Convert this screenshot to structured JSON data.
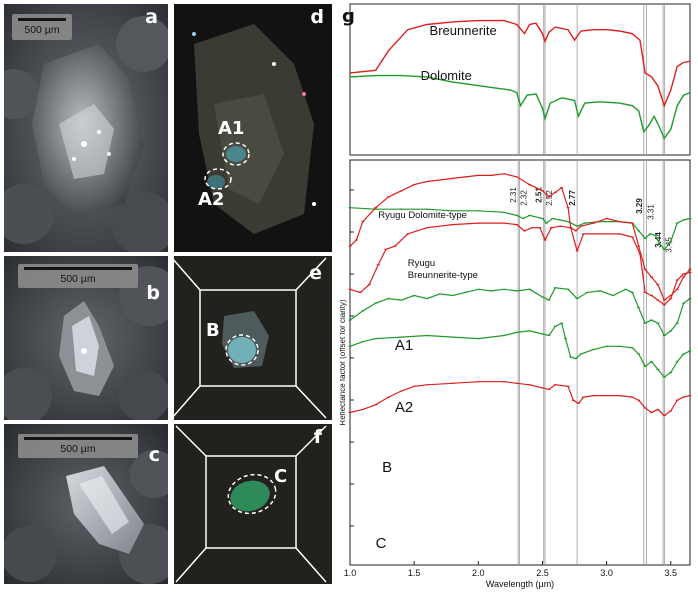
{
  "panels": {
    "a": {
      "label": "a",
      "scale": "500 µm"
    },
    "b": {
      "label": "b",
      "scale": "500 µm"
    },
    "c": {
      "label": "c",
      "scale": "500 µm"
    },
    "d": {
      "label": "d",
      "spots": [
        "A1",
        "A2"
      ]
    },
    "e": {
      "label": "e",
      "spots": [
        "B"
      ]
    },
    "f": {
      "label": "f",
      "spots": [
        "C"
      ]
    },
    "g": {
      "label": "g"
    }
  },
  "chart_data": {
    "type": "line",
    "xlabel": "Wavelength (µm)",
    "ylabel": "Reflectance factor (offset for clarity)",
    "xlim": [
      1.0,
      3.65
    ],
    "xticks": [
      "1.0",
      "1.5",
      "2.0",
      "2.5",
      "3.0",
      "3.5"
    ],
    "reference_lines": [
      {
        "x": 2.31,
        "label": "2.31",
        "bold": false
      },
      {
        "x": 2.32,
        "label": "2.32",
        "bold": false
      },
      {
        "x": 2.51,
        "label": "2.51",
        "bold": true
      },
      {
        "x": 2.52,
        "label": "2.52",
        "bold": false
      },
      {
        "x": 2.77,
        "label": "2.77",
        "bold": true
      },
      {
        "x": 3.29,
        "label": "3.29",
        "bold": true
      },
      {
        "x": 3.31,
        "label": "3.31",
        "bold": false
      },
      {
        "x": 3.44,
        "label": "3.44",
        "bold": true
      },
      {
        "x": 3.45,
        "label": "3.45",
        "bold": false
      }
    ],
    "colors": {
      "red": "#dd1f1f",
      "green": "#1f9a2a"
    },
    "upper": [
      {
        "name": "Breunnerite",
        "color": "red",
        "x": [
          1.0,
          1.2,
          1.3,
          1.45,
          1.6,
          1.8,
          2.0,
          2.2,
          2.3,
          2.36,
          2.4,
          2.45,
          2.5,
          2.52,
          2.55,
          2.6,
          2.7,
          2.75,
          2.8,
          2.9,
          3.0,
          3.1,
          3.2,
          3.26,
          3.3,
          3.35,
          3.4,
          3.45,
          3.5,
          3.55,
          3.6,
          3.65
        ],
        "y": [
          0.55,
          0.57,
          0.72,
          0.88,
          0.92,
          0.94,
          0.95,
          0.95,
          0.92,
          0.85,
          0.92,
          0.93,
          0.85,
          0.79,
          0.86,
          0.9,
          0.88,
          0.8,
          0.87,
          0.88,
          0.88,
          0.87,
          0.85,
          0.8,
          0.55,
          0.52,
          0.45,
          0.3,
          0.42,
          0.6,
          0.63,
          0.64
        ]
      },
      {
        "name": "Dolomite",
        "color": "green",
        "x": [
          1.0,
          1.2,
          1.4,
          1.6,
          1.8,
          1.95,
          2.1,
          2.25,
          2.3,
          2.33,
          2.38,
          2.45,
          2.5,
          2.52,
          2.56,
          2.65,
          2.75,
          2.78,
          2.83,
          2.95,
          3.1,
          3.2,
          3.25,
          3.29,
          3.33,
          3.37,
          3.41,
          3.45,
          3.5,
          3.55,
          3.6,
          3.65
        ],
        "y": [
          0.52,
          0.53,
          0.53,
          0.52,
          0.48,
          0.46,
          0.44,
          0.42,
          0.4,
          0.3,
          0.38,
          0.39,
          0.28,
          0.2,
          0.32,
          0.36,
          0.34,
          0.22,
          0.32,
          0.33,
          0.32,
          0.3,
          0.26,
          0.1,
          0.15,
          0.22,
          0.14,
          0.05,
          0.12,
          0.3,
          0.38,
          0.4
        ]
      }
    ],
    "lower": [
      {
        "name": "Ryugu Dolomite-type",
        "label": "Ryugu Dolomite-type",
        "color": "green",
        "x": [
          1.0,
          1.2,
          1.4,
          1.6,
          1.8,
          2.0,
          2.2,
          2.3,
          2.35,
          2.4,
          2.5,
          2.53,
          2.58,
          2.7,
          2.77,
          2.83,
          2.95,
          3.1,
          3.2,
          3.25,
          3.3,
          3.34,
          3.38,
          3.41,
          3.45,
          3.5,
          3.55,
          3.6,
          3.65
        ],
        "y": [
          0.95,
          0.94,
          0.94,
          0.94,
          0.93,
          0.93,
          0.92,
          0.9,
          0.88,
          0.9,
          0.88,
          0.85,
          0.88,
          0.86,
          0.83,
          0.85,
          0.86,
          0.86,
          0.85,
          0.8,
          0.75,
          0.78,
          0.77,
          0.72,
          0.68,
          0.73,
          0.85,
          0.87,
          0.88
        ]
      },
      {
        "name": "Ryugu Breunnerite-type",
        "label": "Ryugu Breunnerite-type",
        "color": "red",
        "x": [
          1.0,
          1.08,
          1.15,
          1.22,
          1.28,
          1.35,
          1.45,
          1.6,
          1.8,
          2.0,
          2.2,
          2.3,
          2.36,
          2.42,
          2.48,
          2.52,
          2.57,
          2.64,
          2.72,
          2.77,
          2.82,
          2.95,
          3.1,
          3.2,
          3.26,
          3.3,
          3.35,
          3.4,
          3.45,
          3.5,
          3.55,
          3.6,
          3.65
        ],
        "y": [
          0.42,
          0.4,
          0.45,
          0.58,
          0.68,
          0.7,
          0.78,
          0.82,
          0.84,
          0.85,
          0.85,
          0.84,
          0.8,
          0.82,
          0.82,
          0.74,
          0.82,
          0.83,
          0.82,
          0.67,
          0.78,
          0.78,
          0.78,
          0.76,
          0.65,
          0.4,
          0.38,
          0.35,
          0.32,
          0.36,
          0.48,
          0.52,
          0.53
        ]
      },
      {
        "name": "A1",
        "label": "A1",
        "color": "green",
        "x": [
          1.0,
          1.1,
          1.2,
          1.3,
          1.4,
          1.5,
          1.6,
          1.7,
          1.8,
          1.9,
          2.0,
          2.1,
          2.2,
          2.3,
          2.4,
          2.5,
          2.55,
          2.6,
          2.7,
          2.77,
          2.85,
          2.95,
          3.05,
          3.15,
          3.2,
          3.25,
          3.3,
          3.35,
          3.4,
          3.45,
          3.5,
          3.55,
          3.6,
          3.65
        ],
        "y": [
          0.22,
          0.28,
          0.33,
          0.36,
          0.35,
          0.38,
          0.36,
          0.39,
          0.38,
          0.4,
          0.42,
          0.41,
          0.42,
          0.41,
          0.42,
          0.37,
          0.35,
          0.43,
          0.42,
          0.36,
          0.4,
          0.41,
          0.38,
          0.42,
          0.4,
          0.3,
          0.2,
          0.22,
          0.2,
          0.12,
          0.15,
          0.2,
          0.33,
          0.36
        ]
      },
      {
        "name": "A2",
        "label": "A2",
        "color": "red",
        "x": [
          1.0,
          1.05,
          1.1,
          1.2,
          1.3,
          1.4,
          1.5,
          1.6,
          1.7,
          1.8,
          1.9,
          2.0,
          2.1,
          2.2,
          2.3,
          2.4,
          2.5,
          2.55,
          2.6,
          2.65,
          2.7,
          2.72,
          2.76,
          2.8,
          2.9,
          3.0,
          3.1,
          3.2,
          3.25,
          3.3,
          3.35,
          3.4,
          3.45,
          3.5,
          3.55,
          3.6,
          3.65
        ],
        "y": [
          0.7,
          0.74,
          0.86,
          0.95,
          1.02,
          1.06,
          1.1,
          1.12,
          1.13,
          1.14,
          1.15,
          1.16,
          1.16,
          1.17,
          1.15,
          1.1,
          1.06,
          1.02,
          1.05,
          1.08,
          0.95,
          0.82,
          0.8,
          0.83,
          0.85,
          0.88,
          0.86,
          0.85,
          0.7,
          0.55,
          0.5,
          0.45,
          0.35,
          0.38,
          0.42,
          0.5,
          0.55
        ]
      },
      {
        "name": "B",
        "label": "B",
        "color": "green",
        "x": [
          1.0,
          1.1,
          1.2,
          1.4,
          1.6,
          1.8,
          2.0,
          2.2,
          2.3,
          2.4,
          2.5,
          2.55,
          2.6,
          2.65,
          2.68,
          2.72,
          2.76,
          2.8,
          2.9,
          3.0,
          3.1,
          3.2,
          3.25,
          3.3,
          3.35,
          3.4,
          3.45,
          3.5,
          3.55,
          3.6,
          3.65
        ],
        "y": [
          0.05,
          0.08,
          0.1,
          0.11,
          0.12,
          0.11,
          0.1,
          0.12,
          0.14,
          0.15,
          0.13,
          0.12,
          0.18,
          0.2,
          0.1,
          -0.02,
          -0.03,
          0.0,
          0.03,
          0.05,
          0.05,
          0.04,
          0.0,
          -0.08,
          -0.05,
          -0.1,
          -0.15,
          -0.12,
          -0.05,
          0.0,
          0.02
        ]
      },
      {
        "name": "C",
        "label": "C",
        "color": "red",
        "x": [
          1.0,
          1.1,
          1.2,
          1.3,
          1.4,
          1.5,
          1.6,
          1.8,
          2.0,
          2.2,
          2.3,
          2.4,
          2.5,
          2.55,
          2.6,
          2.7,
          2.74,
          2.78,
          2.82,
          2.9,
          3.0,
          3.1,
          3.2,
          3.25,
          3.3,
          3.35,
          3.4,
          3.45,
          3.5,
          3.55,
          3.6,
          3.65
        ],
        "y": [
          -0.38,
          -0.36,
          -0.33,
          -0.28,
          -0.24,
          -0.21,
          -0.2,
          -0.19,
          -0.18,
          -0.18,
          -0.19,
          -0.2,
          -0.22,
          -0.23,
          -0.2,
          -0.21,
          -0.3,
          -0.32,
          -0.28,
          -0.27,
          -0.27,
          -0.27,
          -0.28,
          -0.3,
          -0.35,
          -0.38,
          -0.36,
          -0.4,
          -0.37,
          -0.3,
          -0.28,
          -0.27
        ]
      }
    ]
  }
}
